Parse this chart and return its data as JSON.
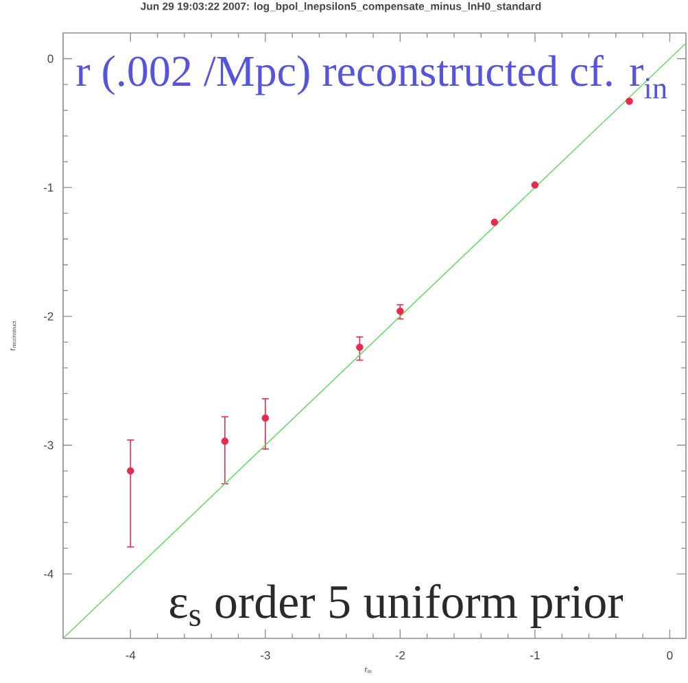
{
  "chart_data": {
    "type": "scatter",
    "title": "Jun 29 19:03:22 2007: log_bpol_lnepsilon5_compensate_minus_lnH0_standard",
    "xlabel": "r$_{in}$",
    "ylabel": "\\mathrm{r}_{\\mathrm{reconstruct}}",
    "annotations": [
      "r (.002 /Mpc) reconstructed cf. r$_{in}$",
      "ε$_{s}$ order 5 uniform prior"
    ],
    "xlim": [
      -4.5,
      0.12
    ],
    "ylim": [
      -4.5,
      0.2
    ],
    "xticks": [
      -4,
      -3,
      -2,
      -1,
      0
    ],
    "yticks": [
      -4,
      -3,
      -2,
      -1,
      0
    ],
    "series": [
      {
        "color": "#e8284c",
        "marker": "circle",
        "x": [
          -4,
          -3.3,
          -3,
          -2.3,
          -2,
          -1.3,
          -1,
          -0.3
        ],
        "values": [
          -3.2,
          -2.97,
          -2.79,
          -2.24,
          -1.96,
          -1.27,
          -0.98,
          -0.33
        ],
        "errors": [
          [
            -3.79,
            -2.96
          ],
          [
            -3.3,
            -2.78
          ],
          [
            -3.03,
            -2.64
          ],
          [
            -2.34,
            -2.16
          ],
          [
            -2.02,
            -1.91
          ],
          null,
          null,
          null
        ]
      },
      {
        "type": "line",
        "color": "#66dd66",
        "x": [
          -4.5,
          0.12
        ],
        "values": [
          -4.5,
          0.12
        ]
      }
    ]
  }
}
